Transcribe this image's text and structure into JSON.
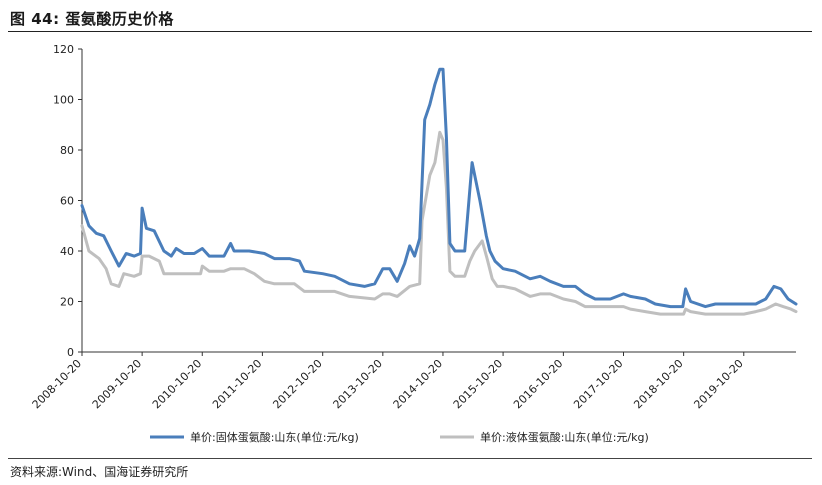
{
  "figure": {
    "title": "图 44:  蛋氨酸历史价格",
    "source": "资料来源:Wind、国海证券研究所"
  },
  "colors": {
    "series1": "#4a7ebb",
    "series2": "#bfbfbf"
  },
  "chart_data": {
    "type": "line",
    "title": "",
    "xlabel": "",
    "ylabel": "",
    "ylim": [
      0,
      120
    ],
    "yticks": [
      0,
      20,
      40,
      60,
      80,
      100,
      120
    ],
    "xlim": [
      "2008-10-20",
      "2020-09-01"
    ],
    "xticks": [
      "2008-10-20",
      "2009-10-20",
      "2010-10-20",
      "2011-10-20",
      "2012-10-20",
      "2013-10-20",
      "2014-10-20",
      "2015-10-20",
      "2016-10-20",
      "2017-10-20",
      "2018-10-20",
      "2019-10-20"
    ],
    "grid": false,
    "legend_position": "bottom",
    "series": [
      {
        "name": "单价:固体蛋氨酸:山东(单位:元/kg)",
        "color": "#4a7ebb",
        "points": [
          [
            "2008-10-20",
            58
          ],
          [
            "2008-12-01",
            50
          ],
          [
            "2009-01-15",
            47
          ],
          [
            "2009-03-01",
            46
          ],
          [
            "2009-04-15",
            40
          ],
          [
            "2009-06-01",
            34
          ],
          [
            "2009-07-15",
            39
          ],
          [
            "2009-09-01",
            38
          ],
          [
            "2009-10-10",
            39
          ],
          [
            "2009-10-20",
            57
          ],
          [
            "2009-11-15",
            49
          ],
          [
            "2010-01-01",
            48
          ],
          [
            "2010-03-01",
            40
          ],
          [
            "2010-04-15",
            38
          ],
          [
            "2010-05-15",
            41
          ],
          [
            "2010-07-01",
            39
          ],
          [
            "2010-09-01",
            39
          ],
          [
            "2010-10-20",
            41
          ],
          [
            "2010-12-01",
            38
          ],
          [
            "2011-03-01",
            38
          ],
          [
            "2011-04-10",
            43
          ],
          [
            "2011-05-01",
            40
          ],
          [
            "2011-08-01",
            40
          ],
          [
            "2011-11-01",
            39
          ],
          [
            "2012-01-01",
            37
          ],
          [
            "2012-04-01",
            37
          ],
          [
            "2012-06-01",
            36
          ],
          [
            "2012-07-01",
            32
          ],
          [
            "2012-10-20",
            31
          ],
          [
            "2013-01-01",
            30
          ],
          [
            "2013-04-01",
            27
          ],
          [
            "2013-07-01",
            26
          ],
          [
            "2013-09-01",
            27
          ],
          [
            "2013-10-20",
            33
          ],
          [
            "2013-12-01",
            33
          ],
          [
            "2014-01-15",
            28
          ],
          [
            "2014-03-01",
            35
          ],
          [
            "2014-04-01",
            42
          ],
          [
            "2014-05-01",
            38
          ],
          [
            "2014-06-01",
            45
          ],
          [
            "2014-07-01",
            92
          ],
          [
            "2014-08-01",
            98
          ],
          [
            "2014-09-01",
            106
          ],
          [
            "2014-10-01",
            112
          ],
          [
            "2014-10-20",
            112
          ],
          [
            "2014-11-10",
            85
          ],
          [
            "2014-12-01",
            43
          ],
          [
            "2015-01-01",
            40
          ],
          [
            "2015-03-01",
            40
          ],
          [
            "2015-04-15",
            75
          ],
          [
            "2015-06-01",
            60
          ],
          [
            "2015-07-10",
            46
          ],
          [
            "2015-08-01",
            40
          ],
          [
            "2015-09-01",
            36
          ],
          [
            "2015-10-20",
            33
          ],
          [
            "2016-01-01",
            32
          ],
          [
            "2016-04-01",
            29
          ],
          [
            "2016-06-01",
            30
          ],
          [
            "2016-08-01",
            28
          ],
          [
            "2016-10-20",
            26
          ],
          [
            "2017-01-01",
            26
          ],
          [
            "2017-03-01",
            23
          ],
          [
            "2017-05-01",
            21
          ],
          [
            "2017-08-01",
            21
          ],
          [
            "2017-10-20",
            23
          ],
          [
            "2017-12-01",
            22
          ],
          [
            "2018-03-01",
            21
          ],
          [
            "2018-05-01",
            19
          ],
          [
            "2018-08-01",
            18
          ],
          [
            "2018-10-15",
            18
          ],
          [
            "2018-11-01",
            25
          ],
          [
            "2018-12-01",
            20
          ],
          [
            "2019-03-01",
            18
          ],
          [
            "2019-05-01",
            19
          ],
          [
            "2019-08-01",
            19
          ],
          [
            "2019-10-20",
            19
          ],
          [
            "2020-01-01",
            19
          ],
          [
            "2020-03-01",
            21
          ],
          [
            "2020-04-20",
            26
          ],
          [
            "2020-06-01",
            25
          ],
          [
            "2020-07-15",
            21
          ],
          [
            "2020-09-01",
            19
          ]
        ]
      },
      {
        "name": "单价:液体蛋氨酸:山东(单位:元/kg)",
        "color": "#bfbfbf",
        "points": [
          [
            "2008-10-20",
            50
          ],
          [
            "2008-12-01",
            40
          ],
          [
            "2009-02-01",
            37
          ],
          [
            "2009-03-15",
            33
          ],
          [
            "2009-04-15",
            27
          ],
          [
            "2009-06-01",
            26
          ],
          [
            "2009-07-01",
            31
          ],
          [
            "2009-09-01",
            30
          ],
          [
            "2009-10-10",
            31
          ],
          [
            "2009-10-20",
            38
          ],
          [
            "2009-12-01",
            38
          ],
          [
            "2010-02-01",
            36
          ],
          [
            "2010-03-01",
            31
          ],
          [
            "2010-06-01",
            31
          ],
          [
            "2010-10-10",
            31
          ],
          [
            "2010-10-20",
            34
          ],
          [
            "2010-12-01",
            32
          ],
          [
            "2011-03-01",
            32
          ],
          [
            "2011-04-10",
            33
          ],
          [
            "2011-07-01",
            33
          ],
          [
            "2011-09-01",
            31
          ],
          [
            "2011-11-01",
            28
          ],
          [
            "2012-01-01",
            27
          ],
          [
            "2012-05-01",
            27
          ],
          [
            "2012-07-01",
            24
          ],
          [
            "2012-10-20",
            24
          ],
          [
            "2013-01-01",
            24
          ],
          [
            "2013-04-01",
            22
          ],
          [
            "2013-09-01",
            21
          ],
          [
            "2013-10-20",
            23
          ],
          [
            "2013-12-01",
            23
          ],
          [
            "2014-01-15",
            22
          ],
          [
            "2014-04-01",
            26
          ],
          [
            "2014-06-01",
            27
          ],
          [
            "2014-06-15",
            52
          ],
          [
            "2014-08-01",
            70
          ],
          [
            "2014-09-01",
            75
          ],
          [
            "2014-10-01",
            87
          ],
          [
            "2014-10-20",
            84
          ],
          [
            "2014-11-10",
            65
          ],
          [
            "2014-12-01",
            32
          ],
          [
            "2015-01-01",
            30
          ],
          [
            "2015-03-01",
            30
          ],
          [
            "2015-04-01",
            36
          ],
          [
            "2015-05-01",
            40
          ],
          [
            "2015-06-15",
            44
          ],
          [
            "2015-07-15",
            37
          ],
          [
            "2015-08-15",
            29
          ],
          [
            "2015-09-15",
            26
          ],
          [
            "2015-10-20",
            26
          ],
          [
            "2016-01-01",
            25
          ],
          [
            "2016-04-01",
            22
          ],
          [
            "2016-06-01",
            23
          ],
          [
            "2016-08-01",
            23
          ],
          [
            "2016-10-20",
            21
          ],
          [
            "2017-01-01",
            20
          ],
          [
            "2017-03-01",
            18
          ],
          [
            "2017-06-01",
            18
          ],
          [
            "2017-10-20",
            18
          ],
          [
            "2017-12-01",
            17
          ],
          [
            "2018-03-01",
            16
          ],
          [
            "2018-06-01",
            15
          ],
          [
            "2018-10-20",
            15
          ],
          [
            "2018-11-01",
            17
          ],
          [
            "2018-12-01",
            16
          ],
          [
            "2019-03-01",
            15
          ],
          [
            "2019-06-01",
            15
          ],
          [
            "2019-10-20",
            15
          ],
          [
            "2020-01-01",
            16
          ],
          [
            "2020-03-01",
            17
          ],
          [
            "2020-05-01",
            19
          ],
          [
            "2020-06-15",
            18
          ],
          [
            "2020-08-01",
            17
          ],
          [
            "2020-09-01",
            16
          ]
        ]
      }
    ]
  }
}
